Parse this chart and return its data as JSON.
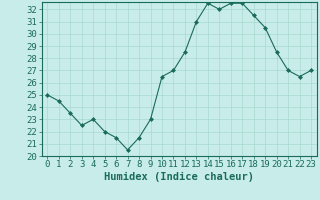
{
  "x": [
    0,
    1,
    2,
    3,
    4,
    5,
    6,
    7,
    8,
    9,
    10,
    11,
    12,
    13,
    14,
    15,
    16,
    17,
    18,
    19,
    20,
    21,
    22,
    23
  ],
  "y": [
    25.0,
    24.5,
    23.5,
    22.5,
    23.0,
    22.0,
    21.5,
    20.5,
    21.5,
    23.0,
    26.5,
    27.0,
    28.5,
    31.0,
    32.5,
    32.0,
    32.5,
    32.5,
    31.5,
    30.5,
    28.5,
    27.0,
    26.5,
    27.0
  ],
  "line_color": "#1a6b5a",
  "marker": "D",
  "marker_size": 2.0,
  "bg_color": "#c8ece9",
  "grid_color": "#a8d8d0",
  "axis_color": "#1a6b5a",
  "xlabel": "Humidex (Indice chaleur)",
  "ylim": [
    20,
    32.6
  ],
  "xlim": [
    -0.5,
    23.5
  ],
  "yticks": [
    20,
    21,
    22,
    23,
    24,
    25,
    26,
    27,
    28,
    29,
    30,
    31,
    32
  ],
  "xticks": [
    0,
    1,
    2,
    3,
    4,
    5,
    6,
    7,
    8,
    9,
    10,
    11,
    12,
    13,
    14,
    15,
    16,
    17,
    18,
    19,
    20,
    21,
    22,
    23
  ],
  "xlabel_fontsize": 7.5,
  "tick_fontsize": 6.5,
  "tick_color": "#1a6b5a"
}
